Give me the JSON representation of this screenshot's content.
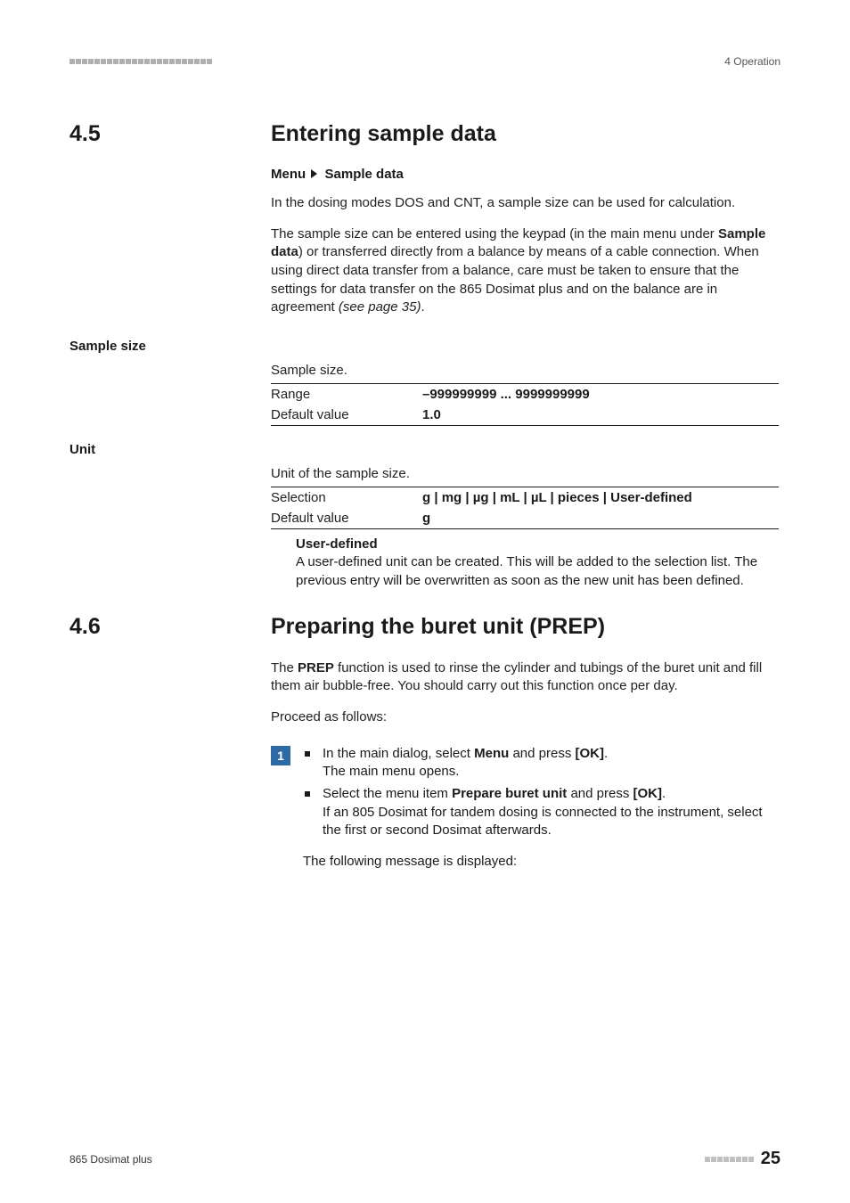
{
  "header": {
    "left_marks_count": 23,
    "right_text": "4 Operation"
  },
  "sections": [
    {
      "num": "4.5",
      "title": "Entering sample data",
      "menupath": {
        "prefix": "Menu",
        "target": "Sample data"
      },
      "paras": [
        "In the dosing modes DOS and CNT, a sample size can be used for calculation.",
        "The sample size can be entered using the keypad (in the main menu under <b>Sample data</b>) or transferred directly from a balance by means of a cable connection. When using direct data transfer from a balance, care must be taken to ensure that the settings for data transfer on the 865 Dosimat plus and on the balance are in agreement <i class=\"it\">(see page 35)</i>."
      ],
      "groups": [
        {
          "side_label": "Sample size",
          "intro": "Sample size.",
          "rows": [
            {
              "label": "Range",
              "value": "–999999999 ... 9999999999"
            },
            {
              "label": "Default value",
              "value": "1.0"
            }
          ]
        },
        {
          "side_label": "Unit",
          "intro": "Unit of the sample size.",
          "rows": [
            {
              "label": "Selection",
              "value": "g | mg | µg | mL | µL | pieces | User-defined"
            },
            {
              "label": "Default value",
              "value": "g"
            }
          ],
          "note": {
            "head": "User-defined",
            "body": "A user-defined unit can be created. This will be added to the selection list. The previous entry will be overwritten as soon as the new unit has been defined."
          }
        }
      ]
    },
    {
      "num": "4.6",
      "title": "Preparing the buret unit (PREP)",
      "paras": [
        "The <b>PREP</b> function is used to rinse the cylinder and tubings of the buret unit and fill them air bubble-free. You should carry out this function once per day.",
        "Proceed as follows:"
      ],
      "step": {
        "num": "1",
        "bullets": [
          "In the main dialog, select <b>Menu</b> and press <b>[OK]</b>.<br>The main menu opens.",
          "Select the menu item <b>Prepare buret unit</b> and press <b>[OK]</b>.<br>If an 805 Dosimat for tandem dosing is connected to the instrument, select the first or second Dosimat afterwards."
        ],
        "tail": "The following message is displayed:"
      }
    }
  ],
  "footer": {
    "left": "865 Dosimat plus",
    "right_marks_count": 8,
    "page": "25"
  },
  "colors": {
    "step_badge": "#2f6aa5"
  }
}
